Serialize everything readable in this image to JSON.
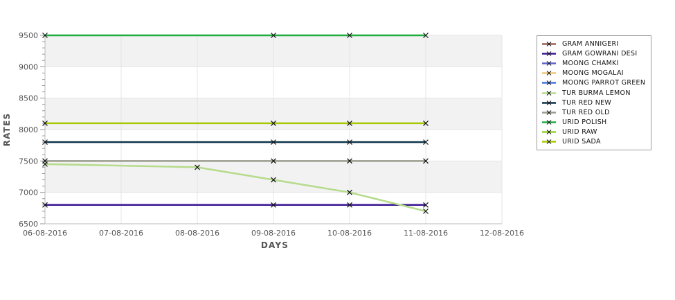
{
  "page": {
    "background_color": "#ffffff",
    "plot_band_color": "#f2f2f2",
    "gridline_color": "#e4e4e4",
    "axis_line_color": "#bbbbbb",
    "tick_color": "#999999",
    "axis_text_color": "#555555",
    "marker_color": "#111111",
    "legend_border_color": "#9a9a9a"
  },
  "chart_data": {
    "type": "line",
    "title": "",
    "xlabel": "DAYS",
    "ylabel": "RATES",
    "legend_position": "outside-right",
    "marker": "x",
    "grid": true,
    "x_tick_labels": [
      "06-08-2016",
      "07-08-2016",
      "08-08-2016",
      "09-08-2016",
      "10-08-2016",
      "11-08-2016",
      "12-08-2016"
    ],
    "y_ticks": [
      6500,
      7000,
      7500,
      8000,
      8500,
      9000,
      9500
    ],
    "y_minor_tick_interval": 100,
    "ylim": [
      6500,
      9500
    ],
    "banded_y_ranges_gray": [
      [
        9000,
        9500
      ],
      [
        8000,
        8500
      ],
      [
        7000,
        7500
      ]
    ],
    "series": [
      {
        "name": "GRAM ANNIGERI",
        "color": "#9b6053",
        "visible_in_plot": false,
        "x": [],
        "values": []
      },
      {
        "name": "GRAM GOWRANI DESI",
        "color": "#3a1693",
        "visible_in_plot": true,
        "x": [
          "06-08-2016",
          "09-08-2016",
          "10-08-2016",
          "11-08-2016"
        ],
        "values": [
          6800,
          6800,
          6800,
          6800
        ]
      },
      {
        "name": "MOONG CHAMKI",
        "color": "#5c63cf",
        "visible_in_plot": false,
        "x": [],
        "values": []
      },
      {
        "name": "MOONG MOGALAI",
        "color": "#efc678",
        "visible_in_plot": false,
        "x": [],
        "values": []
      },
      {
        "name": "MOONG PARROT GREEN",
        "color": "#4377e0",
        "visible_in_plot": false,
        "x": [],
        "values": []
      },
      {
        "name": "TUR BURMA LEMON",
        "color": "#b5db8b",
        "visible_in_plot": true,
        "x": [
          "06-08-2016",
          "08-08-2016",
          "09-08-2016",
          "10-08-2016",
          "11-08-2016"
        ],
        "values": [
          7450,
          7400,
          7200,
          7000,
          6700
        ]
      },
      {
        "name": "TUR RED NEW",
        "color": "#0e3349",
        "visible_in_plot": true,
        "x": [
          "06-08-2016",
          "09-08-2016",
          "10-08-2016",
          "11-08-2016"
        ],
        "values": [
          7800,
          7800,
          7800,
          7800
        ]
      },
      {
        "name": "TUR RED OLD",
        "color": "#989c8b",
        "visible_in_plot": true,
        "x": [
          "06-08-2016",
          "09-08-2016",
          "10-08-2016",
          "11-08-2016"
        ],
        "values": [
          7500,
          7500,
          7500,
          7500
        ]
      },
      {
        "name": "URID POLISH",
        "color": "#1fae3d",
        "visible_in_plot": true,
        "x": [
          "06-08-2016",
          "09-08-2016",
          "10-08-2016",
          "11-08-2016"
        ],
        "values": [
          9500,
          9500,
          9500,
          9500
        ]
      },
      {
        "name": "URID RAW",
        "color": "#96d22e",
        "visible_in_plot": false,
        "x": [],
        "values": []
      },
      {
        "name": "URID SADA",
        "color": "#a8c800",
        "visible_in_plot": true,
        "x": [
          "06-08-2016",
          "09-08-2016",
          "10-08-2016",
          "11-08-2016"
        ],
        "values": [
          8100,
          8100,
          8100,
          8100
        ]
      }
    ]
  }
}
